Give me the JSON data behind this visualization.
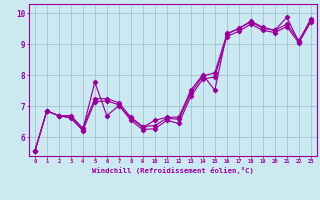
{
  "bg_color": "#cce8f0",
  "line_color": "#990099",
  "grid_color": "#99bbcc",
  "xlim": [
    -0.5,
    23.5
  ],
  "ylim": [
    5.4,
    10.3
  ],
  "xticks": [
    0,
    1,
    2,
    3,
    4,
    5,
    6,
    7,
    8,
    9,
    10,
    11,
    12,
    13,
    14,
    15,
    16,
    17,
    18,
    19,
    20,
    21,
    22,
    23
  ],
  "yticks": [
    6,
    7,
    8,
    9,
    10
  ],
  "xlabel": "Windchill (Refroidissement éolien,°C)",
  "line1_x": [
    0,
    1,
    2,
    3,
    4,
    5,
    6,
    7,
    8,
    9,
    10,
    11,
    12,
    13,
    14,
    15,
    16,
    17,
    18,
    19,
    20,
    21,
    22,
    23
  ],
  "line1_y": [
    5.55,
    6.85,
    6.7,
    6.65,
    6.25,
    7.78,
    6.7,
    7.02,
    6.62,
    6.32,
    6.55,
    6.65,
    6.65,
    7.52,
    8.02,
    7.52,
    9.35,
    9.5,
    9.75,
    9.55,
    9.45,
    9.87,
    9.08,
    9.82
  ],
  "line2_x": [
    0,
    1,
    2,
    3,
    4,
    5,
    6,
    7,
    8,
    9,
    10,
    11,
    12,
    13,
    14,
    15,
    16,
    17,
    18,
    19,
    20,
    21,
    22,
    23
  ],
  "line2_y": [
    5.55,
    6.85,
    6.7,
    6.7,
    6.3,
    7.25,
    7.25,
    7.12,
    6.65,
    6.35,
    6.38,
    6.62,
    6.58,
    7.42,
    7.98,
    8.08,
    9.32,
    9.52,
    9.72,
    9.52,
    9.45,
    9.65,
    9.12,
    9.78
  ],
  "line3_x": [
    0,
    1,
    2,
    3,
    4,
    5,
    6,
    7,
    8,
    9,
    10,
    11,
    12,
    13,
    14,
    15,
    16,
    17,
    18,
    19,
    20,
    21,
    22,
    23
  ],
  "line3_y": [
    5.55,
    6.85,
    6.7,
    6.62,
    6.22,
    7.15,
    7.18,
    7.05,
    6.55,
    6.25,
    6.28,
    6.55,
    6.45,
    7.32,
    7.88,
    7.95,
    9.25,
    9.42,
    9.65,
    9.45,
    9.38,
    9.57,
    9.05,
    9.72
  ]
}
